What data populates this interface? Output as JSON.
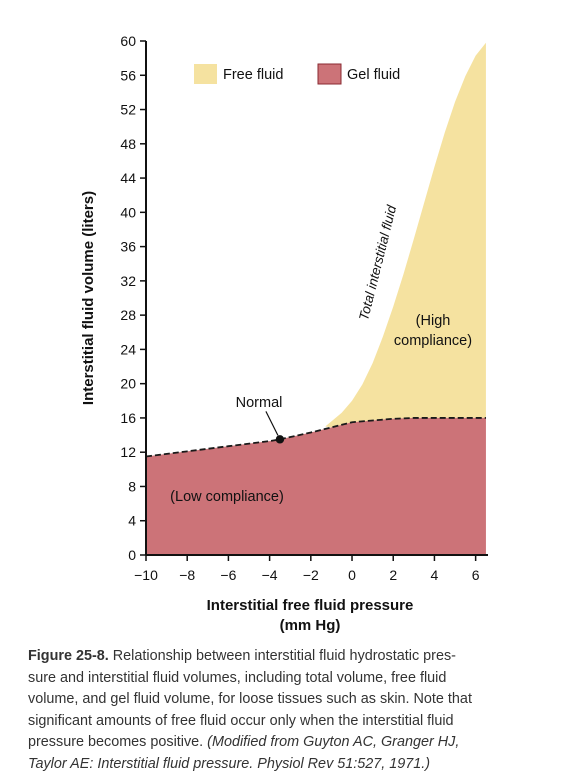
{
  "chart_data": {
    "type": "area",
    "xlabel_line1": "Interstitial free fluid pressure",
    "xlabel_line2": "(mm Hg)",
    "ylabel": "Interstitial fluid volume (liters)",
    "xlim": [
      -10,
      6.6
    ],
    "ylim": [
      0,
      60
    ],
    "x_ticks": [
      -10,
      -8,
      -6,
      -4,
      -2,
      0,
      2,
      4,
      6
    ],
    "x_tick_labels": [
      "−10",
      "−8",
      "−6",
      "−4",
      "−2",
      "0",
      "2",
      "4",
      "6"
    ],
    "y_ticks": [
      0,
      4,
      8,
      12,
      16,
      20,
      24,
      28,
      32,
      36,
      40,
      44,
      48,
      52,
      56,
      60
    ],
    "y_tick_labels": [
      "0",
      "4",
      "8",
      "12",
      "16",
      "20",
      "24",
      "28",
      "32",
      "36",
      "40",
      "44",
      "48",
      "52",
      "56",
      "60"
    ],
    "series": [
      {
        "name": "Free fluid",
        "color": "#f5e2a0",
        "x": [
          -1.3,
          -1,
          -0.5,
          0,
          0.5,
          1,
          1.5,
          2,
          2.5,
          3,
          3.5,
          4,
          4.5,
          5,
          5.5,
          6,
          6.5
        ],
        "y": [
          15.0,
          15.6,
          16.6,
          18.0,
          19.9,
          22.4,
          25.5,
          29.0,
          32.8,
          36.9,
          41.1,
          45.3,
          49.3,
          52.9,
          55.9,
          58.3,
          59.8
        ]
      },
      {
        "name": "Gel fluid",
        "color": "#cc7378",
        "x": [
          -10,
          -8,
          -6,
          -4,
          -3.5,
          -2,
          -1,
          0,
          1,
          2,
          3,
          4,
          5,
          6,
          6.5
        ],
        "y": [
          11.5,
          12.1,
          12.7,
          13.3,
          13.5,
          14.3,
          14.9,
          15.5,
          15.7,
          15.9,
          16.0,
          16.0,
          16.0,
          16.0,
          16.0
        ]
      }
    ],
    "normal_point": {
      "x": -3.5,
      "y": 13.5
    },
    "annotations": {
      "normal": "Normal",
      "total_interstitial_fluid": "Total interstitial fluid",
      "high_compliance_line1": "(High",
      "high_compliance_line2": "compliance)",
      "low_compliance": "(Low compliance)"
    },
    "legend": {
      "position": "top",
      "items": [
        "Free fluid",
        "Gel fluid"
      ]
    }
  },
  "caption": {
    "figure_label": "Figure 25-8.",
    "line1": "Relationship between interstitial fluid hydrostatic pres-",
    "line2": "sure and interstitial fluid volumes, including total volume, free fluid",
    "line3": "volume, and gel fluid volume, for loose tissues such as skin. Note that",
    "line4": "significant amounts of free fluid occur only when the interstitial fluid",
    "line5_plain": "pressure becomes positive.",
    "line5_source": "(Modified from Guyton AC, Granger HJ,",
    "line6_source": "Taylor AE: Interstitial fluid pressure. Physiol Rev 51:527, 1971.)"
  }
}
